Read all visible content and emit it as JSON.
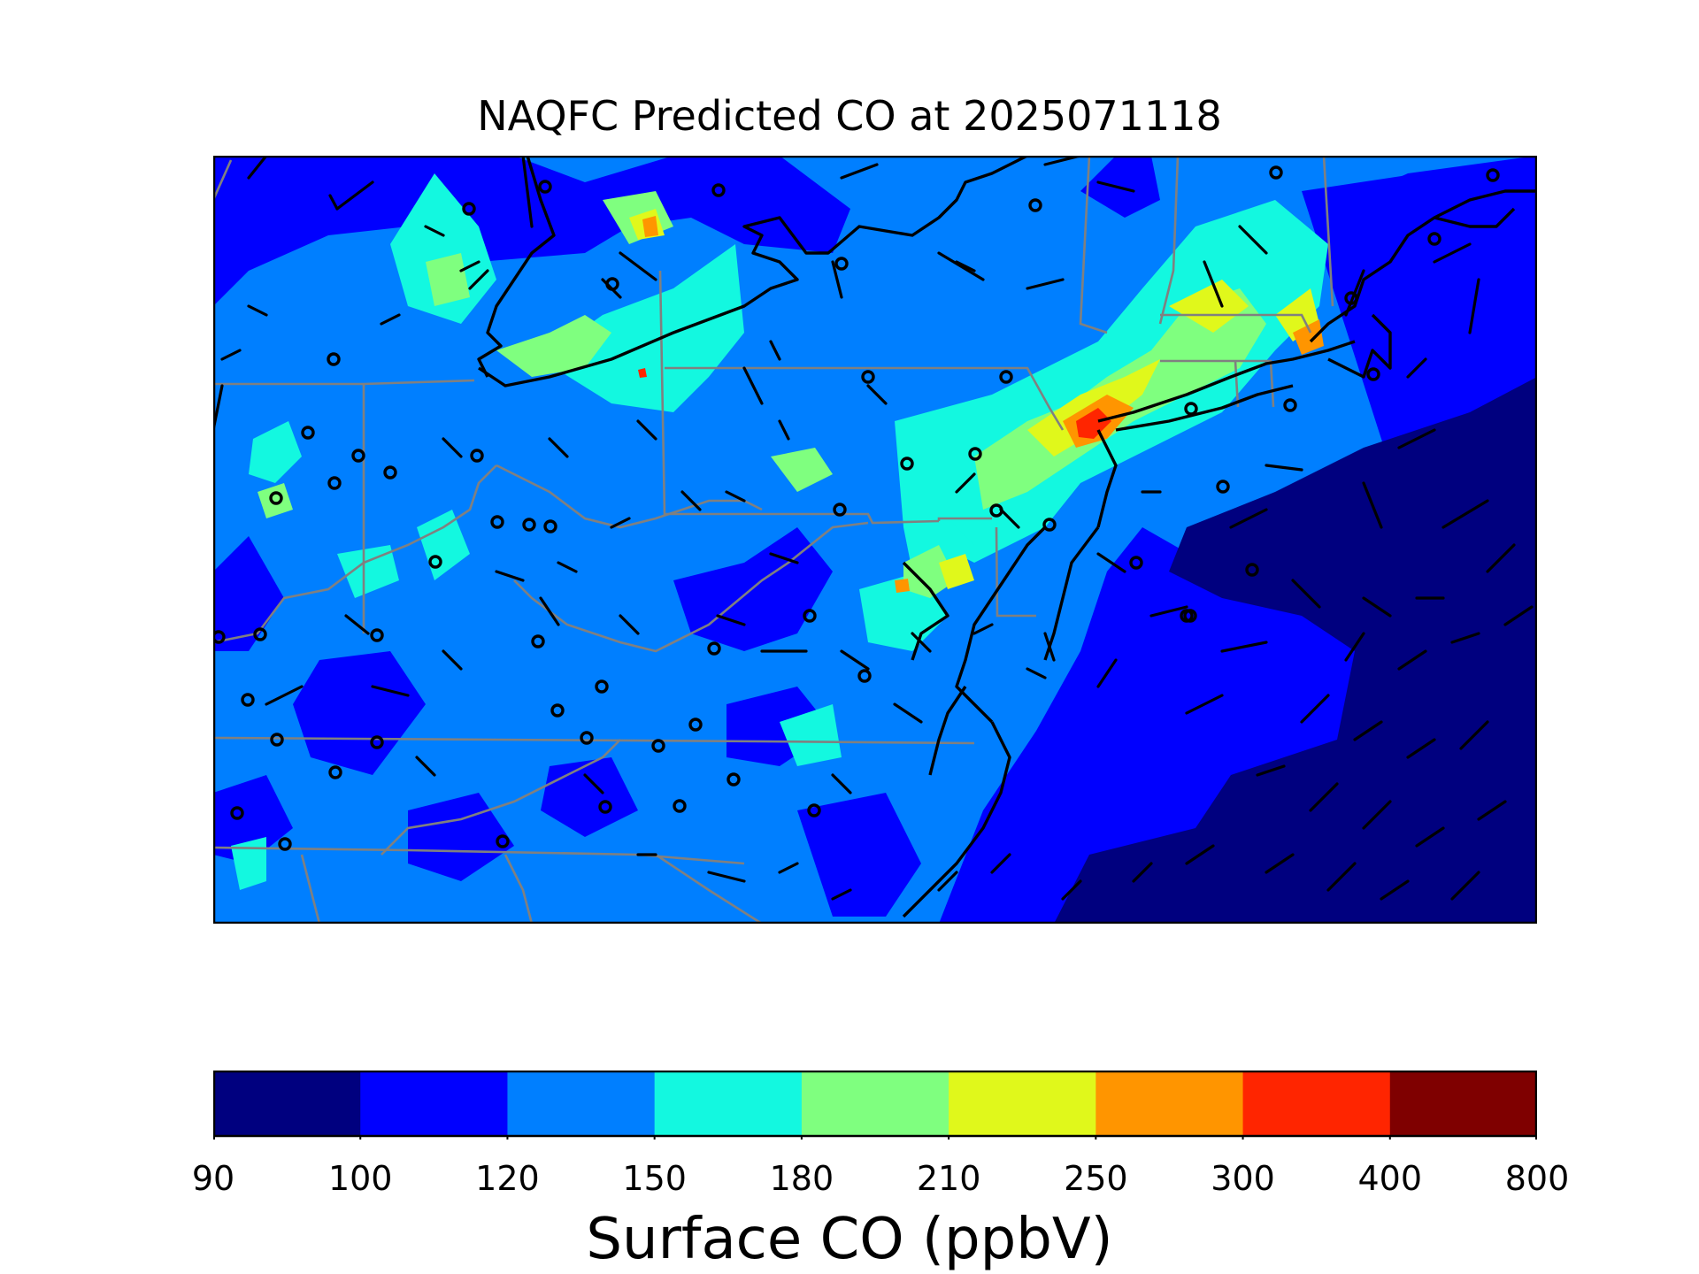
{
  "title": "NAQFC Predicted CO at 2025071118",
  "colorbar": {
    "label": "Surface CO (ppbV)",
    "ticks": [
      "90",
      "100",
      "120",
      "150",
      "180",
      "210",
      "250",
      "300",
      "400",
      "800"
    ],
    "colors": [
      "#00007f",
      "#0000ff",
      "#007fff",
      "#13f8e0",
      "#7fff7f",
      "#e0f81b",
      "#ff9500",
      "#ff2500",
      "#7f0000"
    ]
  },
  "map": {
    "region": "US Mid-Atlantic and Northeast",
    "layers": [
      "co-concentration-field",
      "state-boundaries",
      "coastlines",
      "wind-barbs",
      "observation-site-markers"
    ],
    "boundary_color": "#808080",
    "coast_color": "#000000"
  }
}
